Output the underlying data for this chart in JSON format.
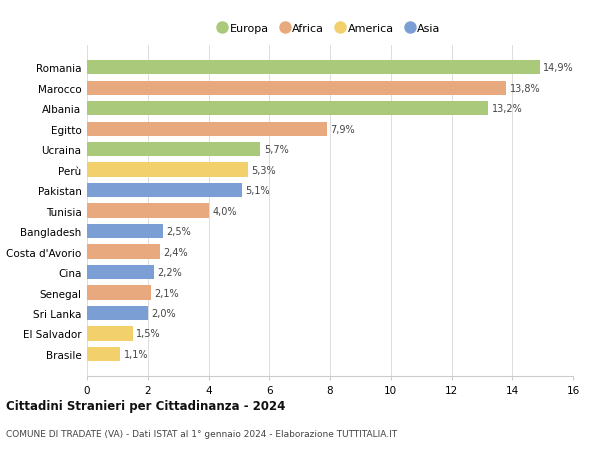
{
  "countries": [
    "Brasile",
    "El Salvador",
    "Sri Lanka",
    "Senegal",
    "Cina",
    "Costa d'Avorio",
    "Bangladesh",
    "Tunisia",
    "Pakistan",
    "Perù",
    "Ucraina",
    "Egitto",
    "Albania",
    "Marocco",
    "Romania"
  ],
  "values": [
    1.1,
    1.5,
    2.0,
    2.1,
    2.2,
    2.4,
    2.5,
    4.0,
    5.1,
    5.3,
    5.7,
    7.9,
    13.2,
    13.8,
    14.9
  ],
  "labels": [
    "1,1%",
    "1,5%",
    "2,0%",
    "2,1%",
    "2,2%",
    "2,4%",
    "2,5%",
    "4,0%",
    "5,1%",
    "5,3%",
    "5,7%",
    "7,9%",
    "13,2%",
    "13,8%",
    "14,9%"
  ],
  "colors": [
    "#f2d06b",
    "#f2d06b",
    "#7b9fd4",
    "#e8a97e",
    "#7b9fd4",
    "#e8a97e",
    "#7b9fd4",
    "#e8a97e",
    "#7b9fd4",
    "#f2d06b",
    "#aac97a",
    "#e8a97e",
    "#aac97a",
    "#e8a97e",
    "#aac97a"
  ],
  "legend_labels": [
    "Europa",
    "Africa",
    "America",
    "Asia"
  ],
  "legend_colors": [
    "#aac97a",
    "#e8a97e",
    "#f2d06b",
    "#7b9fd4"
  ],
  "title": "Cittadini Stranieri per Cittadinanza - 2024",
  "subtitle": "COMUNE DI TRADATE (VA) - Dati ISTAT al 1° gennaio 2024 - Elaborazione TUTTITALIA.IT",
  "xlim": [
    0,
    16
  ],
  "xticks": [
    0,
    2,
    4,
    6,
    8,
    10,
    12,
    14,
    16
  ],
  "bg_color": "#ffffff",
  "grid_color": "#dddddd"
}
